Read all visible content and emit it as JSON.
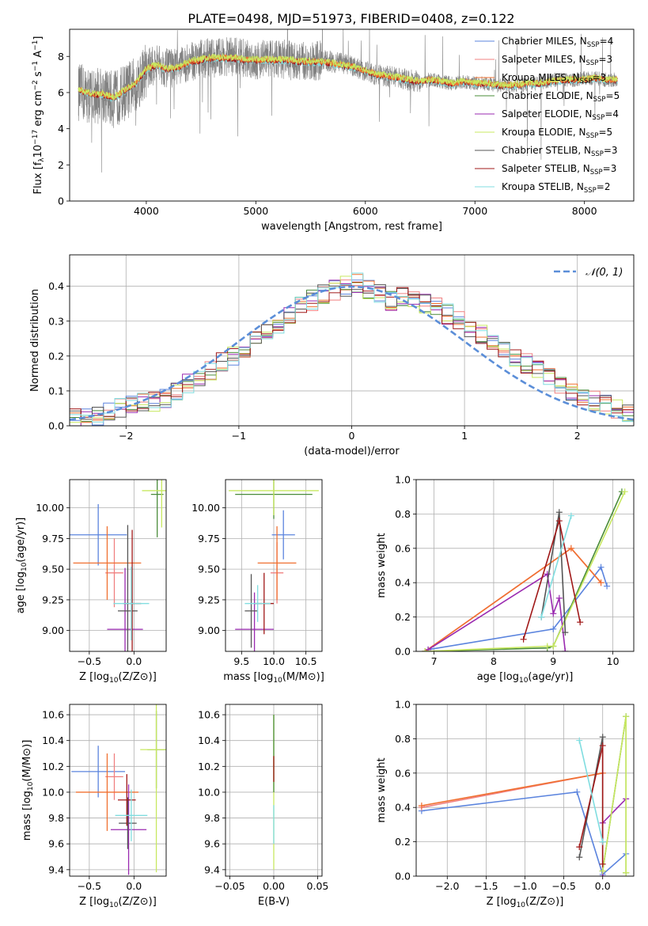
{
  "figure": {
    "title": "PLATE=0498, MJD=51973, FIBERID=0408, z=0.122"
  },
  "colors": {
    "Chabrier MILES": "#5b84de",
    "Salpeter MILES": "#f08080",
    "Kroupa MILES": "#f07030",
    "Chabrier ELODIE": "#4a8c3a",
    "Salpeter ELODIE": "#9a2ab0",
    "Kroupa ELODIE": "#c8e860",
    "Chabrier STELIB": "#555555",
    "Salpeter STELIB": "#a01818",
    "Kroupa STELIB": "#80dde0",
    "gauss": "#5b8ed8"
  },
  "chart_data": [
    {
      "id": "spectrum",
      "type": "line",
      "xlabel": "wavelength [Angstrom, rest frame]",
      "ylabel": "Flux [f",
      "xlim": [
        3300,
        8450
      ],
      "ylim": [
        0,
        9.5
      ],
      "xticks": [
        4000,
        5000,
        6000,
        7000,
        8000
      ],
      "yticks": [
        0,
        2,
        4,
        6,
        8
      ],
      "legend": [
        {
          "name": "Chabrier MILES",
          "nssp": "4"
        },
        {
          "name": "Salpeter MILES",
          "nssp": "3"
        },
        {
          "name": "Kroupa MILES",
          "nssp": "3"
        },
        {
          "name": "Chabrier ELODIE",
          "nssp": "5"
        },
        {
          "name": "Salpeter ELODIE",
          "nssp": "4"
        },
        {
          "name": "Kroupa ELODIE",
          "nssp": "5"
        },
        {
          "name": "Chabrier STELIB",
          "nssp": "3"
        },
        {
          "name": "Salpeter STELIB",
          "nssp": "3"
        },
        {
          "name": "Kroupa STELIB",
          "nssp": "2"
        }
      ],
      "data_x": [
        3400,
        3500,
        3600,
        3700,
        3800,
        3900,
        4000,
        4100,
        4200,
        4300,
        4400,
        4500,
        4600,
        4700,
        4800,
        4900,
        5000,
        5100,
        5200,
        5300,
        5400,
        5500,
        5600,
        5700,
        5800,
        5900,
        6000,
        6100,
        6200,
        6300,
        6400,
        6500,
        6600,
        6700,
        6800,
        6900,
        7000,
        7100,
        7200,
        7300,
        7400,
        7500,
        7600,
        7700,
        7800,
        7900,
        8000,
        8100,
        8200
      ],
      "data_y": [
        6.0,
        5.8,
        5.9,
        5.6,
        6.0,
        6.4,
        7.3,
        7.6,
        7.3,
        7.4,
        7.7,
        7.9,
        7.9,
        8.0,
        8.0,
        7.9,
        7.8,
        7.9,
        7.9,
        7.8,
        7.7,
        7.7,
        7.8,
        7.7,
        7.6,
        7.4,
        7.2,
        7.0,
        6.9,
        6.8,
        6.7,
        6.6,
        6.7,
        6.6,
        6.5,
        6.6,
        6.5,
        6.5,
        6.4,
        6.4,
        6.4,
        6.5,
        6.5,
        6.7,
        6.7,
        6.7,
        6.8,
        6.8,
        6.7
      ],
      "model_y": [
        6.1,
        5.9,
        5.9,
        5.7,
        6.1,
        6.5,
        7.3,
        7.5,
        7.3,
        7.4,
        7.7,
        7.8,
        7.9,
        7.9,
        7.9,
        7.8,
        7.8,
        7.8,
        7.8,
        7.8,
        7.7,
        7.7,
        7.7,
        7.6,
        7.5,
        7.4,
        7.2,
        7.0,
        6.9,
        6.8,
        6.7,
        6.6,
        6.7,
        6.6,
        6.5,
        6.6,
        6.5,
        6.5,
        6.4,
        6.4,
        6.4,
        6.5,
        6.5,
        6.6,
        6.7,
        6.7,
        6.7,
        6.8,
        6.7
      ]
    },
    {
      "id": "residuals",
      "type": "histogram",
      "xlabel": "(data-model)/error",
      "ylabel": "Normed distribution",
      "xlim": [
        -2.5,
        2.5
      ],
      "ylim": [
        0,
        0.49
      ],
      "xticks": [
        -2,
        -1,
        0,
        1,
        2
      ],
      "yticks": [
        0.0,
        0.1,
        0.2,
        0.3,
        0.4
      ],
      "grid": true,
      "legend": "$\\mathcal{N}(0,1)$",
      "legend_placement": "top-right",
      "bin_width": 0.1,
      "bin_start": -2.5,
      "base_hist": [
        0.02,
        0.03,
        0.03,
        0.04,
        0.05,
        0.06,
        0.07,
        0.07,
        0.08,
        0.1,
        0.12,
        0.14,
        0.16,
        0.18,
        0.2,
        0.22,
        0.24,
        0.27,
        0.29,
        0.31,
        0.34,
        0.36,
        0.38,
        0.39,
        0.4,
        0.41,
        0.39,
        0.38,
        0.36,
        0.37,
        0.36,
        0.35,
        0.34,
        0.32,
        0.3,
        0.28,
        0.26,
        0.24,
        0.22,
        0.2,
        0.18,
        0.16,
        0.14,
        0.12,
        0.1,
        0.08,
        0.07,
        0.06,
        0.05,
        0.04
      ]
    },
    {
      "id": "age_vs_Z",
      "type": "errorbar",
      "xlabel": "Z [log",
      "ylabel": "age  [log",
      "xlim": [
        -0.72,
        0.36
      ],
      "ylim": [
        8.83,
        10.23
      ],
      "xticks": [
        -0.5,
        0.0
      ],
      "yticks": [
        9.0,
        9.25,
        9.5,
        9.75,
        10.0
      ],
      "points": [
        {
          "model": "Chabrier MILES",
          "x": -0.4,
          "y": 9.78,
          "xerr": 0.32,
          "yerr": 0.25
        },
        {
          "model": "Salpeter MILES",
          "x": -0.22,
          "y": 9.47,
          "xerr": 0.1,
          "yerr": 0.28
        },
        {
          "model": "Kroupa MILES",
          "x": -0.3,
          "y": 9.55,
          "xerr": 0.38,
          "yerr": 0.3
        },
        {
          "model": "Chabrier ELODIE",
          "x": 0.26,
          "y": 10.11,
          "xerr": 0.07,
          "yerr": 0.35
        },
        {
          "model": "Salpeter ELODIE",
          "x": -0.1,
          "y": 9.01,
          "xerr": 0.2,
          "yerr": 0.5
        },
        {
          "model": "Kroupa ELODIE",
          "x": 0.31,
          "y": 10.14,
          "xerr": 0.22,
          "yerr": 0.3
        },
        {
          "model": "Chabrier STELIB",
          "x": -0.07,
          "y": 9.16,
          "xerr": 0.11,
          "yerr": 0.7
        },
        {
          "model": "Salpeter STELIB",
          "x": -0.02,
          "y": 9.22,
          "xerr": 0.1,
          "yerr": 0.6
        },
        {
          "model": "Kroupa STELIB",
          "x": -0.03,
          "y": 9.22,
          "xerr": 0.2,
          "yerr": 0.3
        }
      ]
    },
    {
      "id": "age_vs_mass",
      "type": "errorbar",
      "xlabel": "mass [log",
      "ylabel": "",
      "xlim": [
        9.25,
        10.75
      ],
      "ylim": [
        8.83,
        10.23
      ],
      "xticks": [
        9.5,
        10.0,
        10.5
      ],
      "yticks": [
        9.0,
        9.25,
        9.5,
        9.75,
        10.0
      ],
      "points": [
        {
          "model": "Chabrier MILES",
          "x": 10.15,
          "y": 9.78,
          "xerr": 0.18,
          "yerr": 0.2
        },
        {
          "model": "Salpeter MILES",
          "x": 10.05,
          "y": 9.47,
          "xerr": 0.1,
          "yerr": 0.25
        },
        {
          "model": "Kroupa MILES",
          "x": 10.05,
          "y": 9.55,
          "xerr": 0.3,
          "yerr": 0.3
        },
        {
          "model": "Chabrier ELODIE",
          "x": 10.0,
          "y": 10.11,
          "xerr": 0.6,
          "yerr": 0.2
        },
        {
          "model": "Salpeter ELODIE",
          "x": 9.7,
          "y": 9.01,
          "xerr": 0.3,
          "yerr": 0.3
        },
        {
          "model": "Kroupa ELODIE",
          "x": 10.0,
          "y": 10.14,
          "xerr": 0.7,
          "yerr": 0.2
        },
        {
          "model": "Chabrier STELIB",
          "x": 9.65,
          "y": 9.16,
          "xerr": 0.1,
          "yerr": 0.3
        },
        {
          "model": "Salpeter STELIB",
          "x": 9.85,
          "y": 9.22,
          "xerr": 0.15,
          "yerr": 0.25
        },
        {
          "model": "Kroupa STELIB",
          "x": 9.75,
          "y": 9.22,
          "xerr": 0.2,
          "yerr": 0.15
        }
      ]
    },
    {
      "id": "weight_vs_age",
      "type": "line",
      "xlabel": "age  [log",
      "ylabel": "mass weight",
      "xlim": [
        6.7,
        10.35
      ],
      "ylim": [
        0,
        1
      ],
      "xticks": [
        7,
        8,
        9,
        10
      ],
      "yticks": [
        0.0,
        0.2,
        0.4,
        0.6,
        0.8,
        1.0
      ],
      "grid": true,
      "series": [
        {
          "model": "Chabrier MILES",
          "x": [
            6.9,
            9.0,
            9.8,
            9.9
          ],
          "y": [
            0.01,
            0.13,
            0.49,
            0.38
          ]
        },
        {
          "model": "Salpeter MILES",
          "x": [
            6.85,
            9.3,
            9.8
          ],
          "y": [
            0.0,
            0.6,
            0.4
          ]
        },
        {
          "model": "Kroupa MILES",
          "x": [
            6.85,
            9.3,
            9.8
          ],
          "y": [
            0.0,
            0.6,
            0.4
          ]
        },
        {
          "model": "Chabrier ELODIE",
          "x": [
            6.85,
            8.9,
            9.0,
            10.15
          ],
          "y": [
            0.0,
            0.02,
            0.03,
            0.93
          ]
        },
        {
          "model": "Salpeter ELODIE",
          "x": [
            6.9,
            8.9,
            9.0,
            9.1,
            9.2
          ],
          "y": [
            0.01,
            0.45,
            0.22,
            0.31,
            0.0
          ]
        },
        {
          "model": "Kroupa ELODIE",
          "x": [
            6.85,
            8.9,
            9.0,
            10.2
          ],
          "y": [
            0.0,
            0.03,
            0.03,
            0.93
          ]
        },
        {
          "model": "Chabrier STELIB",
          "x": [
            8.8,
            9.1,
            9.2
          ],
          "y": [
            0.2,
            0.81,
            0.11
          ]
        },
        {
          "model": "Salpeter STELIB",
          "x": [
            8.5,
            9.1,
            9.45
          ],
          "y": [
            0.07,
            0.76,
            0.17
          ]
        },
        {
          "model": "Kroupa STELIB",
          "x": [
            8.8,
            9.3
          ],
          "y": [
            0.2,
            0.79
          ]
        }
      ]
    },
    {
      "id": "mass_vs_Z",
      "type": "errorbar",
      "xlabel": "Z [log",
      "ylabel": "mass [log",
      "xlim": [
        -0.72,
        0.36
      ],
      "ylim": [
        9.35,
        10.68
      ],
      "xticks": [
        -0.5,
        0.0
      ],
      "yticks": [
        9.4,
        9.6,
        9.8,
        10.0,
        10.2,
        10.4,
        10.6
      ],
      "points": [
        {
          "model": "Chabrier MILES",
          "x": -0.4,
          "y": 10.16,
          "xerr": 0.3,
          "yerr": 0.2
        },
        {
          "model": "Salpeter MILES",
          "x": -0.22,
          "y": 10.12,
          "xerr": 0.1,
          "yerr": 0.18
        },
        {
          "model": "Kroupa MILES",
          "x": -0.3,
          "y": 10.0,
          "xerr": 0.35,
          "yerr": 0.3
        },
        {
          "model": "Chabrier ELODIE",
          "x": 0.25,
          "y": 10.33,
          "xerr": 0.1,
          "yerr": 0.3
        },
        {
          "model": "Salpeter ELODIE",
          "x": -0.06,
          "y": 9.71,
          "xerr": 0.2,
          "yerr": 0.35
        },
        {
          "model": "Kroupa ELODIE",
          "x": 0.25,
          "y": 10.33,
          "xerr": 0.18,
          "yerr": 0.95
        },
        {
          "model": "Chabrier STELIB",
          "x": -0.07,
          "y": 9.76,
          "xerr": 0.1,
          "yerr": 0.2
        },
        {
          "model": "Salpeter STELIB",
          "x": -0.08,
          "y": 9.94,
          "xerr": 0.1,
          "yerr": 0.2
        },
        {
          "model": "Kroupa STELIB",
          "x": -0.03,
          "y": 9.82,
          "xerr": 0.18,
          "yerr": 0.2
        }
      ]
    },
    {
      "id": "mass_vs_ebv",
      "type": "errorbar",
      "xlabel": "E(B-V)",
      "ylabel": "",
      "xlim": [
        -0.055,
        0.055
      ],
      "ylim": [
        9.35,
        10.68
      ],
      "xticks": [
        -0.05,
        0.0,
        0.05
      ],
      "yticks": [
        9.4,
        9.6,
        9.8,
        10.0,
        10.2,
        10.4,
        10.6
      ],
      "points": [
        {
          "model": "Kroupa ELODIE",
          "x": 0.0,
          "y": 10.0,
          "xerr": 0.0,
          "yerr": 0.6
        },
        {
          "model": "Chabrier ELODIE",
          "x": 0.0,
          "y": 10.3,
          "xerr": 0.0,
          "yerr": 0.3
        },
        {
          "model": "Salpeter STELIB",
          "x": 0.0,
          "y": 10.18,
          "xerr": 0.0,
          "yerr": 0.1
        },
        {
          "model": "Kroupa STELIB",
          "x": 0.0,
          "y": 9.75,
          "xerr": 0.0,
          "yerr": 0.15
        }
      ]
    },
    {
      "id": "weight_vs_Z",
      "type": "line",
      "xlabel": "Z [log",
      "ylabel": "mass weight",
      "xlim": [
        -2.4,
        0.4
      ],
      "ylim": [
        0,
        1
      ],
      "xticks": [
        -2.0,
        -1.5,
        -1.0,
        -0.5,
        0.0
      ],
      "yticks": [
        0.0,
        0.2,
        0.4,
        0.6,
        0.8,
        1.0
      ],
      "grid": true,
      "series": [
        {
          "model": "Chabrier MILES",
          "x": [
            -2.33,
            -0.33,
            0.0,
            0.3
          ],
          "y": [
            0.38,
            0.49,
            0.01,
            0.13
          ]
        },
        {
          "model": "Salpeter MILES",
          "x": [
            -2.33,
            0.0
          ],
          "y": [
            0.4,
            0.6
          ]
        },
        {
          "model": "Kroupa MILES",
          "x": [
            -2.33,
            0.0
          ],
          "y": [
            0.41,
            0.6
          ]
        },
        {
          "model": "Chabrier ELODIE",
          "x": [
            0.0,
            0.3,
            0.3
          ],
          "y": [
            0.03,
            0.93,
            0.02
          ]
        },
        {
          "model": "Salpeter ELODIE",
          "x": [
            0.0,
            0.0,
            0.3
          ],
          "y": [
            0.0,
            0.31,
            0.45
          ]
        },
        {
          "model": "Kroupa ELODIE",
          "x": [
            0.0,
            0.3,
            0.3
          ],
          "y": [
            0.03,
            0.93,
            0.02
          ]
        },
        {
          "model": "Chabrier STELIB",
          "x": [
            -0.3,
            0.0,
            0.0
          ],
          "y": [
            0.11,
            0.81,
            0.2
          ]
        },
        {
          "model": "Salpeter STELIB",
          "x": [
            -0.3,
            0.0,
            0.0
          ],
          "y": [
            0.17,
            0.76,
            0.07
          ]
        },
        {
          "model": "Kroupa STELIB",
          "x": [
            -0.3,
            0.0
          ],
          "y": [
            0.79,
            0.2
          ]
        }
      ]
    }
  ]
}
